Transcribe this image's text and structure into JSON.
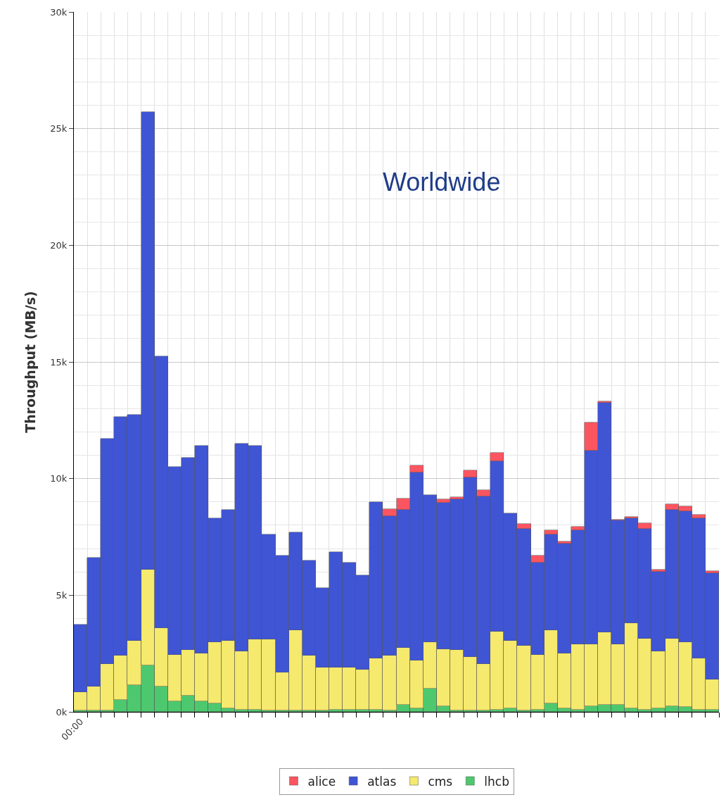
{
  "chart_data": {
    "type": "bar",
    "stacked": true,
    "ylabel": "Throughput (MB/s)",
    "annotations": [
      "Worldwide"
    ],
    "categories": [
      "00:00",
      null,
      null,
      null,
      null,
      null,
      null,
      null,
      null,
      null,
      null,
      null,
      null,
      null,
      null,
      null,
      null,
      null,
      null,
      null,
      null,
      null,
      null,
      null,
      null,
      null,
      null,
      null,
      null,
      null,
      null,
      null,
      null,
      null,
      null,
      null,
      null,
      null,
      null,
      null,
      null,
      null,
      null,
      null,
      null,
      null,
      null,
      null
    ],
    "series": [
      {
        "name": "lhcb",
        "color": "#4dc86e",
        "values": [
          50,
          50,
          50,
          500,
          1150,
          2000,
          1100,
          450,
          700,
          450,
          350,
          150,
          100,
          100,
          50,
          50,
          50,
          50,
          50,
          100,
          100,
          100,
          100,
          50,
          300,
          150,
          1000,
          250,
          50,
          50,
          50,
          100,
          150,
          50,
          100,
          350,
          150,
          100,
          250,
          300,
          300,
          150,
          100,
          150,
          250,
          200,
          100,
          100
        ]
      },
      {
        "name": "cms",
        "color": "#f5e96e",
        "values": [
          800,
          1050,
          2000,
          1900,
          1900,
          4100,
          2500,
          2000,
          1950,
          2050,
          2650,
          2900,
          2500,
          3000,
          3050,
          1650,
          3450,
          2350,
          1850,
          1800,
          1800,
          1700,
          2200,
          2350,
          2450,
          2050,
          2000,
          2450,
          2600,
          2300,
          2000,
          3350,
          2900,
          2800,
          2350,
          3150,
          2350,
          2800,
          2650,
          3100,
          2600,
          3650,
          3050,
          2450,
          2900,
          2800,
          2200,
          1300
        ]
      },
      {
        "name": "atlas",
        "color": "#3f55d4",
        "values": [
          2900,
          5500,
          9650,
          10250,
          9700,
          19600,
          11650,
          8050,
          8250,
          8900,
          5300,
          5600,
          8900,
          8300,
          4500,
          5000,
          4200,
          4100,
          3400,
          4950,
          4500,
          4050,
          6700,
          6000,
          5900,
          8050,
          6300,
          6250,
          6450,
          7700,
          7200,
          7300,
          5450,
          5000,
          3950,
          4100,
          4700,
          4900,
          8300,
          9850,
          5300,
          4500,
          4700,
          3400,
          5500,
          5600,
          6000,
          4550
        ]
      },
      {
        "name": "alice",
        "color": "#fa5560",
        "values": [
          null,
          null,
          null,
          null,
          null,
          null,
          null,
          null,
          null,
          null,
          null,
          null,
          null,
          null,
          null,
          null,
          null,
          null,
          null,
          null,
          null,
          null,
          null,
          300,
          500,
          300,
          null,
          150,
          100,
          300,
          250,
          350,
          null,
          200,
          300,
          200,
          100,
          150,
          1200,
          50,
          50,
          50,
          250,
          100,
          250,
          200,
          150,
          100
        ]
      }
    ],
    "ylim": [
      0,
      30000
    ],
    "yticks": [
      {
        "value": 0,
        "label": "0k"
      },
      {
        "value": 5000,
        "label": "5k"
      },
      {
        "value": 10000,
        "label": "10k"
      },
      {
        "value": 15000,
        "label": "15k"
      },
      {
        "value": 20000,
        "label": "20k"
      },
      {
        "value": 25000,
        "label": "25k"
      },
      {
        "value": 30000,
        "label": "30k"
      }
    ],
    "grid": true,
    "legend": "bottom"
  }
}
